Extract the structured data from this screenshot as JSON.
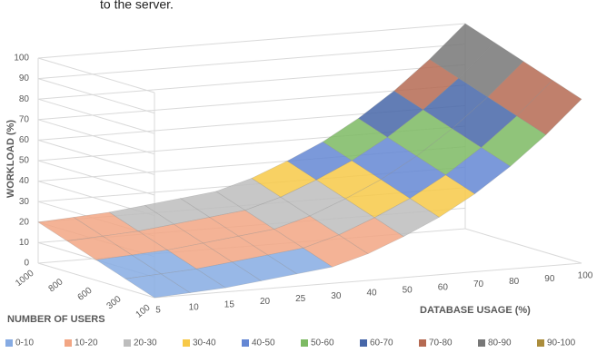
{
  "caption": "to the server.",
  "chart_data": {
    "type": "surface3d",
    "z_label": "WORKLOAD (%)",
    "x_label": "DATABASE USAGE (%)",
    "y_label": "NUMBER OF USERS",
    "categories": [
      5,
      10,
      15,
      20,
      25,
      30,
      40,
      50,
      60,
      70,
      80,
      90,
      100
    ],
    "series": [
      {
        "name": "100",
        "values": [
          0,
          1,
          2,
          4,
          6,
          8,
          13,
          20,
          28,
          38,
          50,
          64,
          80
        ]
      },
      {
        "name": "300",
        "values": [
          5,
          6,
          7,
          9,
          11,
          13,
          18,
          25,
          33,
          43,
          55,
          69,
          85
        ]
      },
      {
        "name": "600",
        "values": [
          10,
          11,
          12,
          14,
          16,
          18,
          23,
          30,
          38,
          48,
          60,
          74,
          90
        ]
      },
      {
        "name": "800",
        "values": [
          15,
          16,
          17,
          19,
          21,
          23,
          28,
          35,
          43,
          53,
          65,
          79,
          95
        ]
      },
      {
        "name": "1000",
        "values": [
          20,
          21,
          22,
          24,
          26,
          28,
          33,
          40,
          48,
          58,
          70,
          84,
          100
        ]
      }
    ],
    "zlim": [
      0,
      100
    ],
    "zticks": [
      0,
      10,
      20,
      30,
      40,
      50,
      60,
      70,
      80,
      90,
      100
    ],
    "grid": true,
    "legend_position": "bottom",
    "bands": [
      {
        "name": "0-10",
        "color": "#86abe3"
      },
      {
        "name": "10-20",
        "color": "#f2a684"
      },
      {
        "name": "20-30",
        "color": "#bdbdbd"
      },
      {
        "name": "30-40",
        "color": "#f7c948"
      },
      {
        "name": "40-50",
        "color": "#6487d4"
      },
      {
        "name": "50-60",
        "color": "#7dba63"
      },
      {
        "name": "60-70",
        "color": "#4666a8"
      },
      {
        "name": "70-80",
        "color": "#b56a52"
      },
      {
        "name": "80-90",
        "color": "#777777"
      },
      {
        "name": "90-100",
        "color": "#ab8d3c"
      }
    ]
  }
}
